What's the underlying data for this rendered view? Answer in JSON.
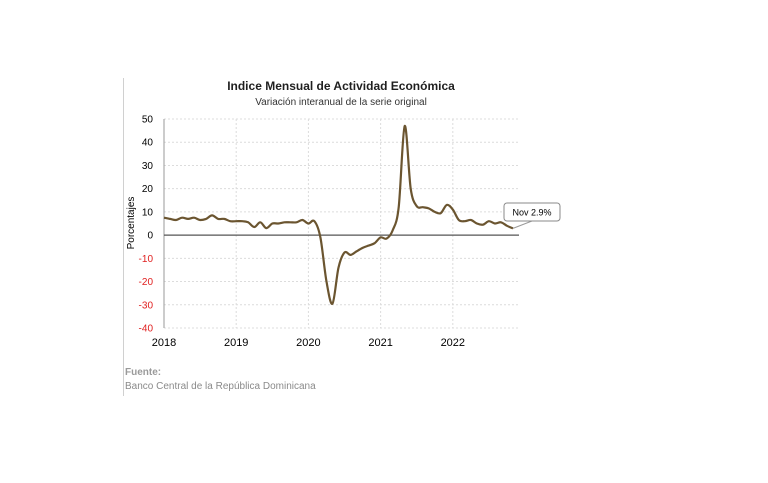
{
  "chart_data": {
    "type": "line",
    "title": "Indice Mensual de  Actividad Económica",
    "subtitle": "Variación interanual de la serie original",
    "ylabel": "Porcentajes",
    "xlabel": "",
    "ylim": [
      -40,
      50
    ],
    "yticks": [
      50,
      40,
      30,
      20,
      10,
      0,
      -10,
      -20,
      -30,
      -40
    ],
    "xlim": [
      "2018-01",
      "2022-12"
    ],
    "xticks": [
      "2018",
      "2019",
      "2020",
      "2021",
      "2022"
    ],
    "grid": true,
    "line_color": "#6b5530",
    "negative_tick_color": "#e02020",
    "series": [
      {
        "x": [
          "2018-01",
          "2018-02",
          "2018-03",
          "2018-04",
          "2018-05",
          "2018-06",
          "2018-07",
          "2018-08",
          "2018-09",
          "2018-10",
          "2018-11",
          "2018-12",
          "2019-01",
          "2019-02",
          "2019-03",
          "2019-04",
          "2019-05",
          "2019-06",
          "2019-07",
          "2019-08",
          "2019-09",
          "2019-10",
          "2019-11",
          "2019-12",
          "2020-01",
          "2020-02",
          "2020-03",
          "2020-04",
          "2020-05",
          "2020-06",
          "2020-07",
          "2020-08",
          "2020-09",
          "2020-10",
          "2020-11",
          "2020-12",
          "2021-01",
          "2021-02",
          "2021-03",
          "2021-04",
          "2021-05",
          "2021-06",
          "2021-07",
          "2021-08",
          "2021-09",
          "2021-10",
          "2021-11",
          "2021-12",
          "2022-01",
          "2022-02",
          "2022-03",
          "2022-04",
          "2022-05",
          "2022-06",
          "2022-07",
          "2022-08",
          "2022-09",
          "2022-10",
          "2022-11"
        ],
        "values": [
          7.5,
          7.0,
          6.5,
          7.5,
          7.0,
          7.5,
          6.5,
          7.0,
          8.5,
          7.0,
          7.0,
          6.0,
          6.0,
          6.0,
          5.5,
          3.5,
          5.5,
          3.0,
          5.0,
          5.0,
          5.5,
          5.5,
          5.5,
          6.5,
          5.0,
          6.0,
          -1.0,
          -20.0,
          -29.5,
          -14.0,
          -7.5,
          -8.5,
          -7.0,
          -5.5,
          -4.5,
          -3.5,
          -1.0,
          -1.5,
          2.0,
          12.0,
          47.0,
          20.0,
          12.5,
          12.0,
          11.5,
          10.0,
          9.5,
          13.0,
          11.0,
          6.5,
          6.0,
          6.5,
          5.0,
          4.5,
          6.0,
          5.0,
          5.5,
          4.0,
          2.9
        ]
      }
    ],
    "callout": "Nov 2.9%"
  },
  "source": {
    "label": "Fuente:",
    "text": "Banco Central de la República Dominicana"
  }
}
